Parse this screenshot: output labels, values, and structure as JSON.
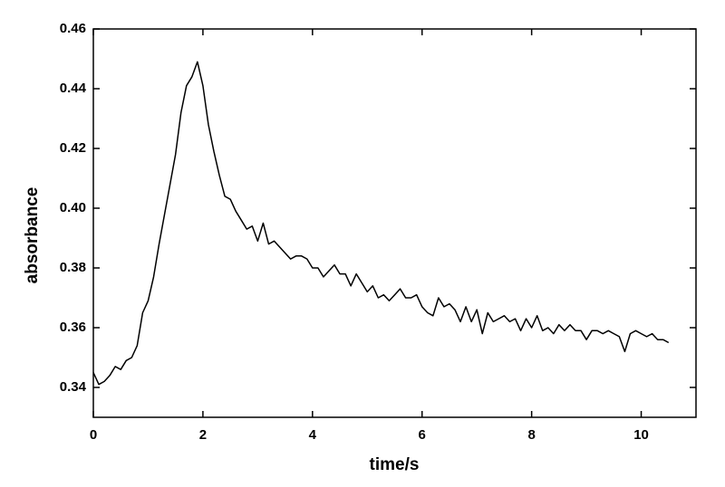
{
  "chart_data": {
    "type": "line",
    "xlabel": "time/s",
    "ylabel": "absorbance",
    "x": [
      0,
      0.1,
      0.2,
      0.3,
      0.4,
      0.5,
      0.6,
      0.7,
      0.8,
      0.9,
      1,
      1.1,
      1.2,
      1.3,
      1.4,
      1.5,
      1.6,
      1.7,
      1.8,
      1.9,
      2,
      2.1,
      2.2,
      2.3,
      2.4,
      2.5,
      2.6,
      2.7,
      2.8,
      2.9,
      3,
      3.1,
      3.2,
      3.3,
      3.4,
      3.5,
      3.6,
      3.7,
      3.8,
      3.9,
      4,
      4.1,
      4.2,
      4.3,
      4.4,
      4.5,
      4.6,
      4.7,
      4.8,
      4.9,
      5,
      5.1,
      5.2,
      5.3,
      5.4,
      5.5,
      5.6,
      5.7,
      5.8,
      5.9,
      6,
      6.1,
      6.2,
      6.3,
      6.4,
      6.5,
      6.6,
      6.7,
      6.8,
      6.9,
      7,
      7.1,
      7.2,
      7.3,
      7.4,
      7.5,
      7.6,
      7.7,
      7.8,
      7.9,
      8,
      8.1,
      8.2,
      8.3,
      8.4,
      8.5,
      8.6,
      8.7,
      8.8,
      8.9,
      9,
      9.1,
      9.2,
      9.3,
      9.4,
      9.5,
      9.6,
      9.7,
      9.8,
      9.9,
      10,
      10.1,
      10.2,
      10.3,
      10.4,
      10.5
    ],
    "values": [
      0.345,
      0.341,
      0.342,
      0.344,
      0.347,
      0.346,
      0.349,
      0.35,
      0.354,
      0.365,
      0.369,
      0.377,
      0.388,
      0.398,
      0.408,
      0.418,
      0.432,
      0.441,
      0.444,
      0.449,
      0.441,
      0.428,
      0.419,
      0.411,
      0.404,
      0.403,
      0.399,
      0.396,
      0.393,
      0.394,
      0.389,
      0.395,
      0.388,
      0.389,
      0.387,
      0.385,
      0.383,
      0.384,
      0.384,
      0.383,
      0.38,
      0.38,
      0.377,
      0.379,
      0.381,
      0.378,
      0.378,
      0.374,
      0.378,
      0.375,
      0.372,
      0.374,
      0.37,
      0.371,
      0.369,
      0.371,
      0.373,
      0.37,
      0.37,
      0.371,
      0.367,
      0.365,
      0.364,
      0.37,
      0.367,
      0.368,
      0.366,
      0.362,
      0.367,
      0.362,
      0.366,
      0.358,
      0.365,
      0.362,
      0.363,
      0.364,
      0.362,
      0.363,
      0.359,
      0.363,
      0.36,
      0.364,
      0.359,
      0.36,
      0.358,
      0.361,
      0.359,
      0.361,
      0.359,
      0.359,
      0.356,
      0.359,
      0.359,
      0.358,
      0.359,
      0.358,
      0.357,
      0.352,
      0.358,
      0.359,
      0.358,
      0.357,
      0.358,
      0.356,
      0.356,
      0.355
    ],
    "color": "#000000",
    "xlim": [
      0,
      11
    ],
    "xticks": [
      0,
      2,
      4,
      6,
      8,
      10
    ],
    "ylim": [
      0.33,
      0.46
    ],
    "yticks": [
      0.34,
      0.36,
      0.38,
      {
        "value": 0.4,
        "label": "0.40"
      },
      0.42,
      0.44,
      0.46
    ],
    "grid": false
  }
}
